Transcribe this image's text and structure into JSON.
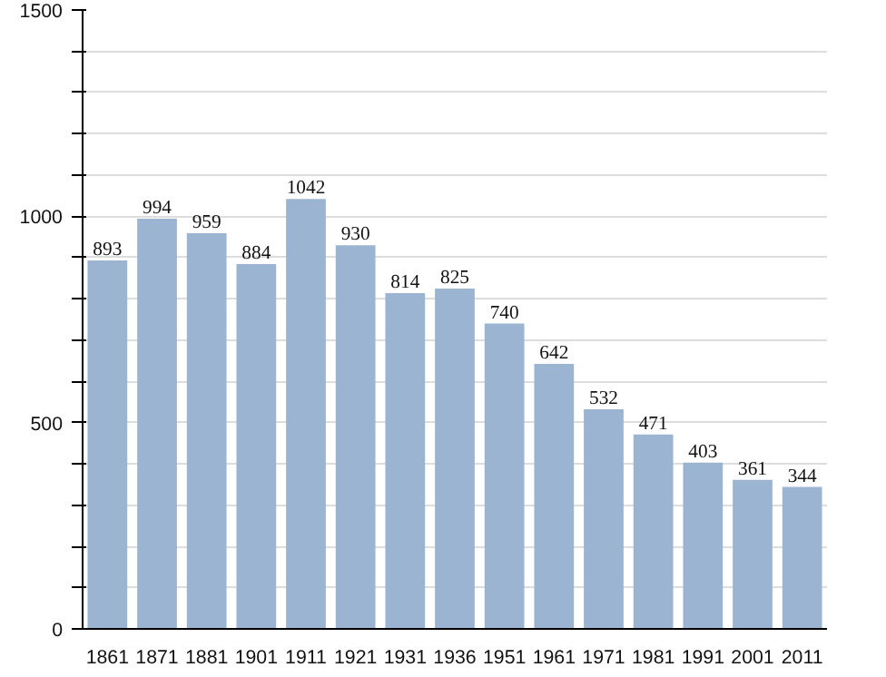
{
  "chart_data": {
    "type": "bar",
    "categories": [
      "1861",
      "1871",
      "1881",
      "1901",
      "1911",
      "1921",
      "1931",
      "1936",
      "1951",
      "1961",
      "1971",
      "1981",
      "1991",
      "2001",
      "2011"
    ],
    "values": [
      893,
      994,
      959,
      884,
      1042,
      930,
      814,
      825,
      740,
      642,
      532,
      471,
      403,
      361,
      344
    ],
    "color": "#9ab4d2",
    "data_labels": true,
    "grid": "y",
    "ylim": [
      0,
      1500
    ],
    "yticks": [
      0,
      {
        "value": 100,
        "label": null
      },
      {
        "value": 200,
        "label": null
      },
      {
        "value": 300,
        "label": null
      },
      {
        "value": 400,
        "label": null
      },
      500,
      {
        "value": 600,
        "label": null
      },
      {
        "value": 700,
        "label": null
      },
      {
        "value": 800,
        "label": null
      },
      {
        "value": 900,
        "label": null
      },
      1000,
      {
        "value": 1100,
        "label": null
      },
      {
        "value": 1200,
        "label": null
      },
      {
        "value": 1300,
        "label": null
      },
      {
        "value": 1400,
        "label": null
      },
      1500
    ]
  }
}
